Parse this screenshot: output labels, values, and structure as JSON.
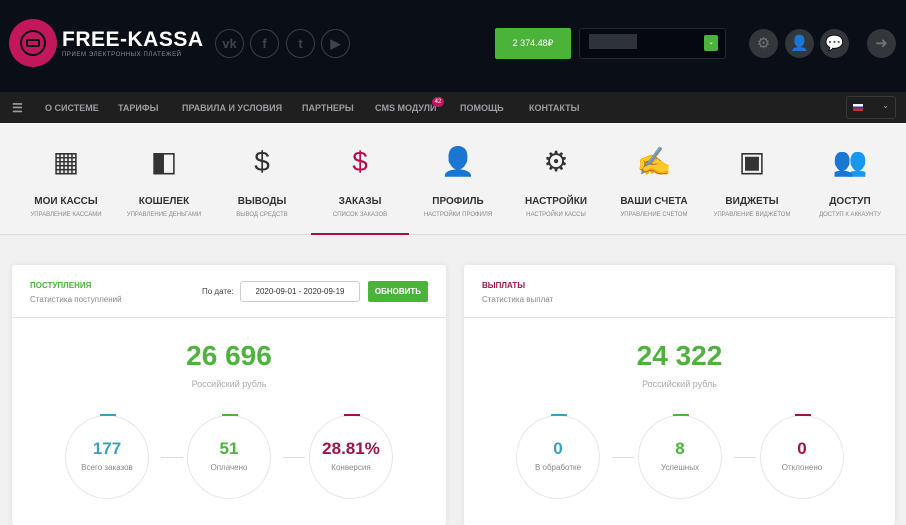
{
  "header": {
    "brand": "FREE-KASSA",
    "tagline": "ПРИЕМ ЭЛЕКТРОННЫХ ПЛАТЕЖЕЙ",
    "social": [
      "vk-icon",
      "facebook-icon",
      "twitter-icon",
      "youtube-icon"
    ],
    "balance": "2 374.48₽",
    "icons": [
      "gear-icon",
      "user-icon",
      "chat-icon",
      "logout-icon"
    ]
  },
  "nav": {
    "items": [
      "О СИСТЕМЕ",
      "ТАРИФЫ",
      "ПРАВИЛА И УСЛОВИЯ",
      "ПАРТНЕРЫ",
      "CMS МОДУЛИ",
      "ПОМОЩЬ",
      "КОНТАКТЫ"
    ],
    "cms_badge": "42",
    "language": "ru"
  },
  "menu": [
    {
      "title": "МОИ КАССЫ",
      "sub": "УПРАВЛЕНИЕ КАССАМИ",
      "icon": "calculator-icon"
    },
    {
      "title": "КОШЕЛЕК",
      "sub": "УПРАВЛЕНИЕ ДЕНЬГАМИ",
      "icon": "wallet-icon"
    },
    {
      "title": "ВЫВОДЫ",
      "sub": "ВЫВОД СРЕДСТВ",
      "icon": "withdraw-icon"
    },
    {
      "title": "ЗАКАЗЫ",
      "sub": "СПИСОК ЗАКАЗОВ",
      "icon": "coins-clock-icon",
      "active": true
    },
    {
      "title": "ПРОФИЛЬ",
      "sub": "НАСТРОЙКИ ПРОФИЛЯ",
      "icon": "profile-icon"
    },
    {
      "title": "НАСТРОЙКИ",
      "sub": "НАСТРОЙКИ КАССЫ",
      "icon": "gears-icon"
    },
    {
      "title": "ВАШИ СЧЕТА",
      "sub": "УПРАВЛЕНИЕ СЧЕТОМ",
      "icon": "check-icon"
    },
    {
      "title": "ВИДЖЕТЫ",
      "sub": "УПРАВЛЕНИЕ ВИДЖЕТОМ",
      "icon": "widget-icon"
    },
    {
      "title": "ДОСТУП",
      "sub": "ДОСТУП К АККАУНТУ",
      "icon": "users-icon"
    }
  ],
  "income": {
    "title": "ПОСТУПЛЕНИЯ",
    "subtitle": "Статистика поступлений",
    "date_label": "По дате:",
    "date_value": "2020-09-01 - 2020-09-19",
    "refresh": "ОБНОВИТЬ",
    "amount": "26 696",
    "currency": "Российский рубль",
    "stats": [
      {
        "value": "177",
        "label": "Всего заказов",
        "color": "#3a9fc0"
      },
      {
        "value": "51",
        "label": "Оплачено",
        "color": "#4db33d"
      },
      {
        "value": "28.81%",
        "label": "Конверсия",
        "color": "#a0144a"
      }
    ]
  },
  "payouts": {
    "title": "ВЫПЛАТЫ",
    "subtitle": "Статистика выплат",
    "amount": "24 322",
    "currency": "Российский рубль",
    "stats": [
      {
        "value": "0",
        "label": "В обработке",
        "color": "#3a9fc0"
      },
      {
        "value": "8",
        "label": "Успешных",
        "color": "#4db33d"
      },
      {
        "value": "0",
        "label": "Отклонено",
        "color": "#a0144a"
      }
    ]
  },
  "colors": {
    "green": "#4cb33a",
    "brand": "#c2185b"
  }
}
